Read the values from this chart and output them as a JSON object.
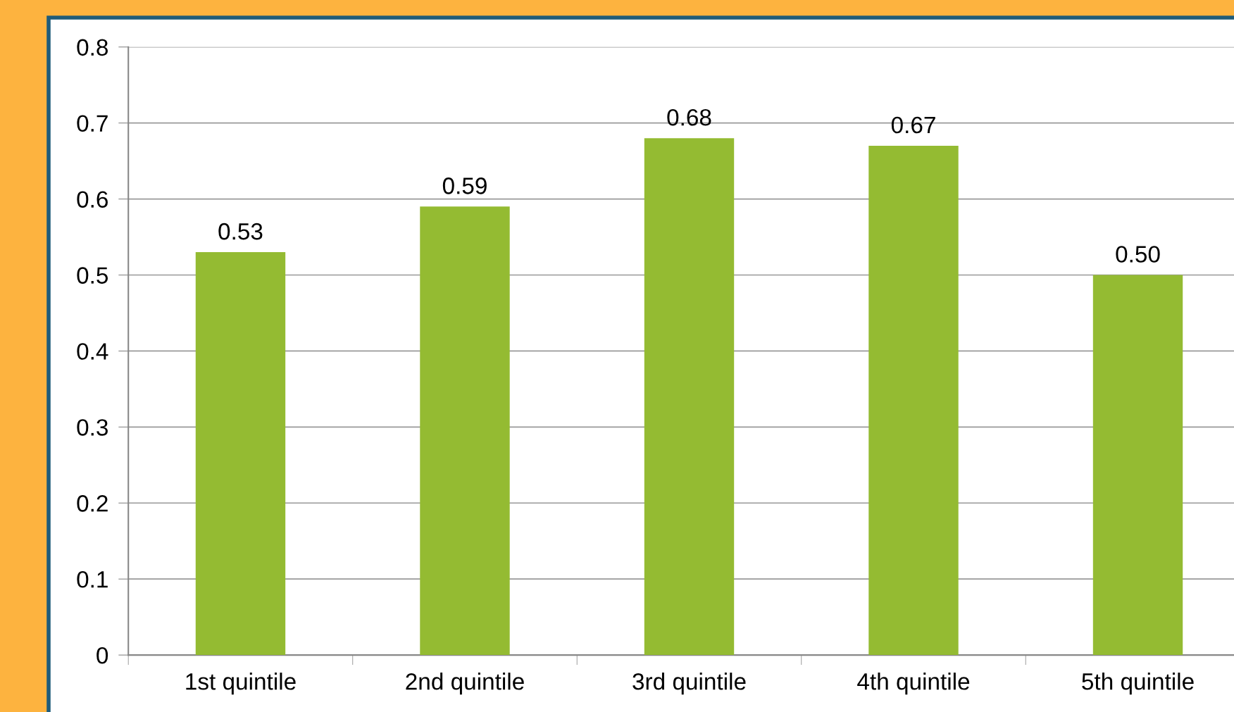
{
  "chart_data": {
    "type": "bar",
    "categories": [
      "1st quintile",
      "2nd quintile",
      "3rd quintile",
      "4th quintile",
      "5th quintile"
    ],
    "values": [
      0.53,
      0.59,
      0.68,
      0.67,
      0.5
    ],
    "value_labels": [
      "0.53",
      "0.59",
      "0.68",
      "0.67",
      "0.50"
    ],
    "color": "#94bb32",
    "ylim": [
      0,
      0.8
    ],
    "yticks": [
      0,
      0.1,
      0.2,
      0.3,
      0.4,
      0.5,
      0.6,
      0.7,
      0.8
    ],
    "grid": "y"
  }
}
